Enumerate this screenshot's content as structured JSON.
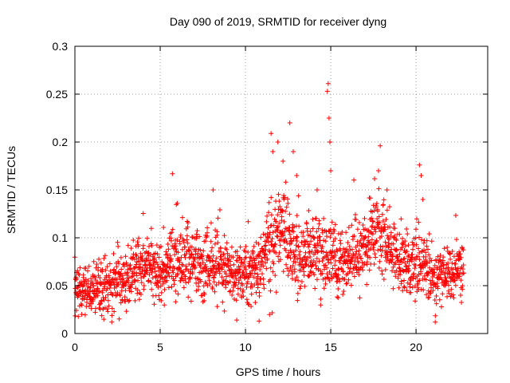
{
  "chart_data": {
    "type": "scatter",
    "title": "Day 090 of 2019, SRMTID for receiver dyng",
    "xlabel": "GPS time / hours",
    "ylabel": "SRMTID / TECUs",
    "xlim": [
      0,
      24.2
    ],
    "ylim": [
      0,
      0.3
    ],
    "x_ticks": [
      0,
      5,
      10,
      15,
      20
    ],
    "x_tick_labels": [
      "0",
      "5",
      "10",
      "15",
      "20"
    ],
    "y_ticks": [
      0,
      0.05,
      0.1,
      0.15,
      0.2,
      0.25,
      0.3
    ],
    "y_tick_labels": [
      "0",
      "0.05",
      "0.1",
      "0.15",
      "0.2",
      "0.25",
      "0.3"
    ],
    "grid": true,
    "marker": "+",
    "series": [
      {
        "name": "SRMTID",
        "color": "#ff0000",
        "profile": [
          {
            "x": 0.0,
            "mean": 0.046,
            "spread": 0.018
          },
          {
            "x": 1.0,
            "mean": 0.045,
            "spread": 0.017
          },
          {
            "x": 2.0,
            "mean": 0.048,
            "spread": 0.018
          },
          {
            "x": 3.0,
            "mean": 0.053,
            "spread": 0.02
          },
          {
            "x": 3.8,
            "mean": 0.07,
            "spread": 0.022
          },
          {
            "x": 4.5,
            "mean": 0.068,
            "spread": 0.022
          },
          {
            "x": 5.0,
            "mean": 0.06,
            "spread": 0.02
          },
          {
            "x": 6.0,
            "mean": 0.082,
            "spread": 0.024
          },
          {
            "x": 7.0,
            "mean": 0.075,
            "spread": 0.022
          },
          {
            "x": 8.0,
            "mean": 0.076,
            "spread": 0.025
          },
          {
            "x": 9.0,
            "mean": 0.065,
            "spread": 0.02
          },
          {
            "x": 10.0,
            "mean": 0.06,
            "spread": 0.02
          },
          {
            "x": 10.7,
            "mean": 0.065,
            "spread": 0.022
          },
          {
            "x": 11.5,
            "mean": 0.1,
            "spread": 0.035
          },
          {
            "x": 12.3,
            "mean": 0.11,
            "spread": 0.03
          },
          {
            "x": 13.0,
            "mean": 0.075,
            "spread": 0.022
          },
          {
            "x": 14.0,
            "mean": 0.085,
            "spread": 0.025
          },
          {
            "x": 15.0,
            "mean": 0.075,
            "spread": 0.022
          },
          {
            "x": 16.0,
            "mean": 0.072,
            "spread": 0.022
          },
          {
            "x": 17.0,
            "mean": 0.092,
            "spread": 0.025
          },
          {
            "x": 17.8,
            "mean": 0.11,
            "spread": 0.03
          },
          {
            "x": 18.5,
            "mean": 0.09,
            "spread": 0.025
          },
          {
            "x": 19.5,
            "mean": 0.072,
            "spread": 0.022
          },
          {
            "x": 20.2,
            "mean": 0.075,
            "spread": 0.025
          },
          {
            "x": 21.0,
            "mean": 0.06,
            "spread": 0.02
          },
          {
            "x": 22.0,
            "mean": 0.058,
            "spread": 0.02
          },
          {
            "x": 22.8,
            "mean": 0.07,
            "spread": 0.022
          }
        ],
        "x_range": [
          0.0,
          22.8
        ],
        "point_count": 2000,
        "spikes": [
          {
            "x": 11.5,
            "y": 0.209
          },
          {
            "x": 11.6,
            "y": 0.19
          },
          {
            "x": 11.9,
            "y": 0.2
          },
          {
            "x": 12.2,
            "y": 0.18
          },
          {
            "x": 12.6,
            "y": 0.22
          },
          {
            "x": 12.8,
            "y": 0.19
          },
          {
            "x": 13.0,
            "y": 0.165
          },
          {
            "x": 14.2,
            "y": 0.15
          },
          {
            "x": 14.8,
            "y": 0.253
          },
          {
            "x": 14.85,
            "y": 0.261
          },
          {
            "x": 14.9,
            "y": 0.225
          },
          {
            "x": 14.95,
            "y": 0.2
          },
          {
            "x": 15.0,
            "y": 0.17
          },
          {
            "x": 8.1,
            "y": 0.15
          },
          {
            "x": 6.0,
            "y": 0.136
          },
          {
            "x": 17.9,
            "y": 0.196
          },
          {
            "x": 17.8,
            "y": 0.17
          },
          {
            "x": 18.3,
            "y": 0.15
          },
          {
            "x": 20.2,
            "y": 0.176
          },
          {
            "x": 20.3,
            "y": 0.165
          },
          {
            "x": 20.4,
            "y": 0.14
          },
          {
            "x": 10.8,
            "y": 0.013
          },
          {
            "x": 0.4,
            "y": 0.02
          }
        ]
      }
    ]
  }
}
